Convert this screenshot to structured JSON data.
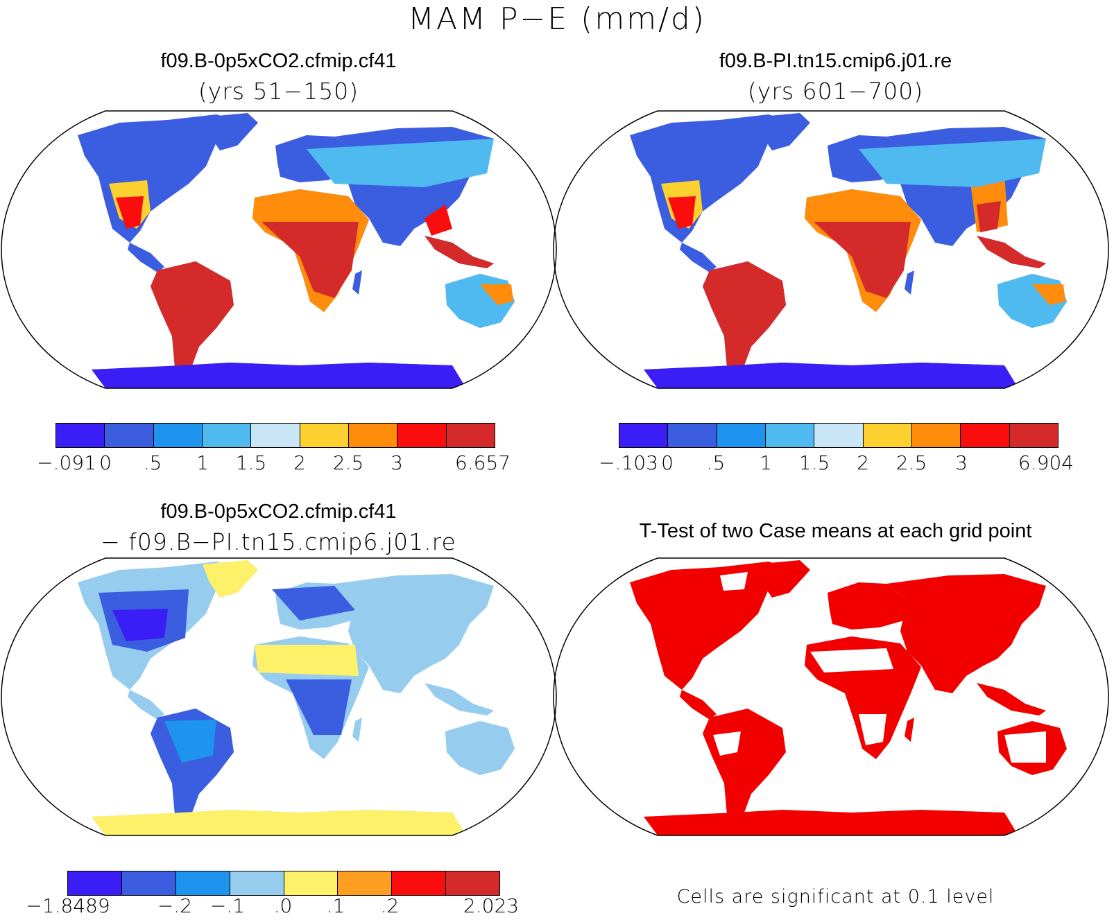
{
  "title": "MAM P−E (mm/d)",
  "panels": {
    "case1": {
      "title": "f09.B-0p5xCO2.cfmip.cf41",
      "subtitle": "(yrs 51−150)",
      "ticks": [
        "−.091",
        "0",
        ".5",
        "1",
        "1.5",
        "2",
        "2.5",
        "3",
        "6.657"
      ]
    },
    "case2": {
      "title": "f09.B-PI.tn15.cmip6.j01.re",
      "subtitle": "(yrs 601−700)",
      "ticks": [
        "−.103",
        "0",
        ".5",
        "1",
        "1.5",
        "2",
        "2.5",
        "3",
        "6.904"
      ]
    },
    "diff": {
      "title": "f09.B-0p5xCO2.cfmip.cf41",
      "subtitle": "− f09.B−PI.tn15.cmip6.j01.re",
      "ticks": [
        "−1.8489",
        "−.2",
        "−.1",
        ".0",
        ".1",
        ".2",
        "2.023"
      ]
    },
    "ttest": {
      "title": "T-Test of two Case means at each grid point",
      "note": "Cells are significant at 0.1 level"
    }
  },
  "colors": {
    "mean_scale": [
      "#3a1ef5",
      "#3b5de0",
      "#1e94ee",
      "#4fbaf0",
      "#c9e6f7",
      "#fdd12f",
      "#ff8c0a",
      "#f90d0d",
      "#d42a2a"
    ],
    "diff_scale": [
      "#3a1ef5",
      "#3b5de0",
      "#1e94ee",
      "#96cdee",
      "#fef16a",
      "#ff9e20",
      "#f90d0d",
      "#d42a2a"
    ],
    "significant": "#f20000"
  }
}
